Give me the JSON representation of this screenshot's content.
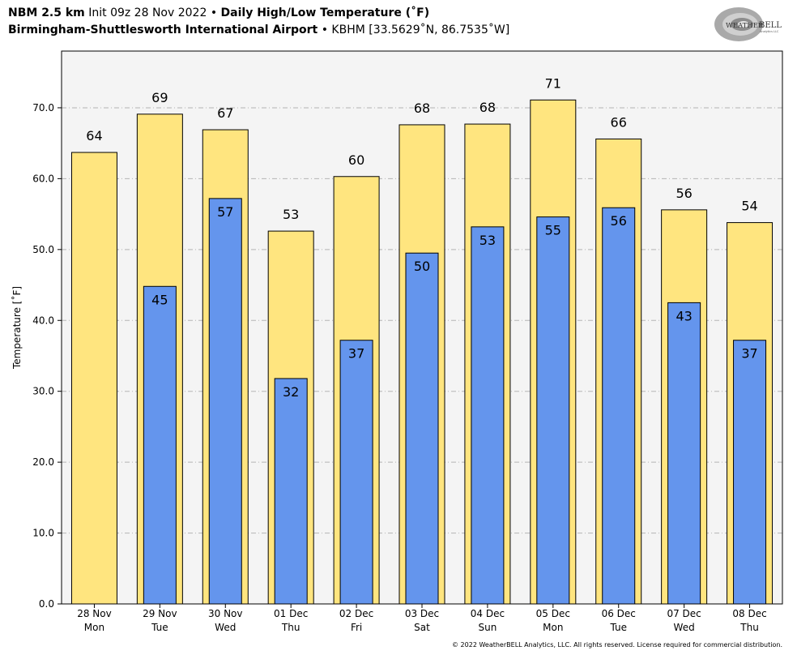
{
  "header": {
    "model": "NBM 2.5 km",
    "init": "Init 09z 28 Nov 2022",
    "sep1": "•",
    "product": "Daily High/Low Temperature (˚F)",
    "station_name": "Birmingham-Shuttlesworth International Airport",
    "sep2": "•",
    "station_id": "KBHM [33.5629˚N, 86.7535˚W]"
  },
  "logo": {
    "text_weather": "WEATHER",
    "text_bell": "BELL",
    "sub": "Analytics LLC",
    "icon": "weatherbell-swirl-logo"
  },
  "copyright": "© 2022 WeatherBELL Analytics, LLC. All rights reserved. License required for commercial distribution.",
  "chart_data": {
    "type": "bar",
    "ylabel": "Temperature [˚F]",
    "ylim": [
      0,
      78
    ],
    "yticks": [
      "0.0",
      "10.0",
      "20.0",
      "30.0",
      "40.0",
      "50.0",
      "60.0",
      "70.0"
    ],
    "grid": true,
    "categories": [
      [
        "28 Nov",
        "Mon"
      ],
      [
        "29 Nov",
        "Tue"
      ],
      [
        "30 Nov",
        "Wed"
      ],
      [
        "01 Dec",
        "Thu"
      ],
      [
        "02 Dec",
        "Fri"
      ],
      [
        "03 Dec",
        "Sat"
      ],
      [
        "04 Dec",
        "Sun"
      ],
      [
        "05 Dec",
        "Mon"
      ],
      [
        "06 Dec",
        "Tue"
      ],
      [
        "07 Dec",
        "Wed"
      ],
      [
        "08 Dec",
        "Thu"
      ]
    ],
    "series": [
      {
        "key": "high",
        "values": [
          63.7,
          69.1,
          66.9,
          52.6,
          60.3,
          67.6,
          67.7,
          71.1,
          65.6,
          55.6,
          53.8
        ],
        "labels": [
          "64",
          "69",
          "67",
          "53",
          "60",
          "68",
          "68",
          "71",
          "66",
          "56",
          "54"
        ],
        "color": "#ffe57f"
      },
      {
        "key": "low",
        "values": [
          null,
          44.8,
          57.2,
          31.8,
          37.2,
          49.5,
          53.2,
          54.6,
          55.9,
          42.5,
          37.2
        ],
        "labels": [
          null,
          "45",
          "57",
          "32",
          "37",
          "50",
          "53",
          "55",
          "56",
          "43",
          "37"
        ],
        "color": "#6495ed"
      }
    ],
    "plot_background": "#f4f4f4"
  }
}
